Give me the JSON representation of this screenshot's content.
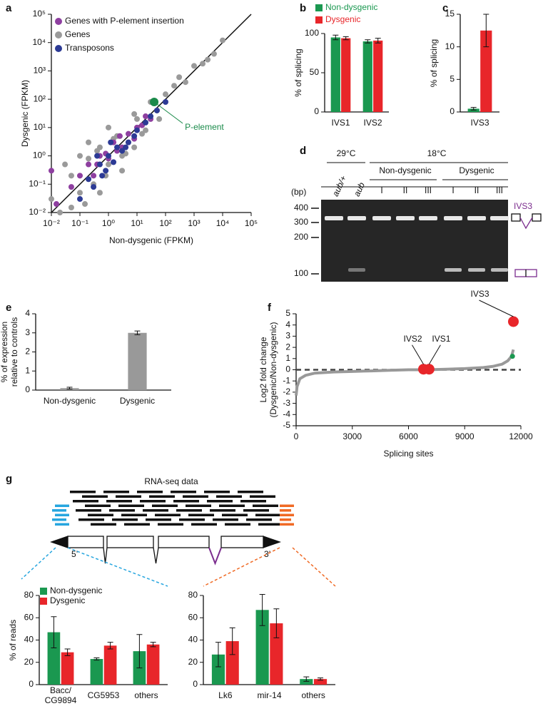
{
  "chart_data": [
    {
      "panel": "a",
      "type": "scatter",
      "log": true,
      "xlabel": "Non-dysgenic (FPKM)",
      "ylabel": "Dysgenic (FPKM)",
      "xlim": [
        0.01,
        100000
      ],
      "ylim": [
        0.01,
        100000
      ],
      "xticks": [
        {
          "value": 0.01,
          "label": "10⁻²"
        },
        {
          "value": 0.1,
          "label": "10⁻¹"
        },
        {
          "value": 1,
          "label": "10⁰"
        },
        {
          "value": 10,
          "label": "10¹"
        },
        {
          "value": 100,
          "label": "10²"
        },
        {
          "value": 1000,
          "label": "10³"
        },
        {
          "value": 10000,
          "label": "10⁴"
        },
        {
          "value": 100000,
          "label": "10⁵"
        }
      ],
      "yticks": [
        {
          "value": 0.01,
          "label": "10⁻²"
        },
        {
          "value": 0.1,
          "label": "10⁻¹"
        },
        {
          "value": 1,
          "label": "10⁰"
        },
        {
          "value": 10,
          "label": "10¹"
        },
        {
          "value": 100,
          "label": "10²"
        },
        {
          "value": 1000,
          "label": "10³"
        },
        {
          "value": 10000,
          "label": "10⁴"
        },
        {
          "value": 100000,
          "label": "10⁵"
        }
      ],
      "legend": "top-left",
      "diagonal": true,
      "series": [
        {
          "name": "Genes with P-element insertion",
          "color": "#8e3fa0",
          "x": [
            0.01,
            0.015,
            0.05,
            0.1,
            0.2,
            0.3,
            0.5,
            1,
            1.5,
            2,
            3,
            5,
            8,
            10,
            15,
            20,
            30,
            0.4,
            0.8,
            2.5
          ],
          "y": [
            0.3,
            0.02,
            0.08,
            0.2,
            0.5,
            0.2,
            1,
            0.8,
            3,
            1.5,
            2,
            6,
            4,
            10,
            12,
            25,
            20,
            0.5,
            1.2,
            5
          ]
        },
        {
          "name": "Genes",
          "color": "#9a9a9a",
          "x": [
            0.01,
            0.02,
            0.05,
            0.1,
            0.2,
            0.3,
            0.5,
            1,
            2,
            3,
            5,
            10,
            20,
            50,
            100,
            200,
            500,
            1000,
            2000,
            5000,
            10000,
            0.03,
            0.15,
            0.4,
            0.8,
            1.5,
            4,
            8,
            15,
            30,
            0.05,
            0.2,
            1,
            3,
            0.1,
            0.5,
            60,
            300,
            3000,
            8
          ],
          "y": [
            0.03,
            0.01,
            0.2,
            0.05,
            0.8,
            0.1,
            2,
            0.5,
            5,
            1,
            3,
            20,
            8,
            40,
            150,
            300,
            400,
            1500,
            1800,
            4000,
            12000,
            0.5,
            0.02,
            1.5,
            0.2,
            4,
            1.2,
            30,
            6,
            80,
            0.015,
            3,
            10,
            0.3,
            1,
            0.05,
            20,
            600,
            2500,
            2
          ]
        },
        {
          "name": "Transposons",
          "color": "#2c3a95",
          "x": [
            0.1,
            0.2,
            0.3,
            0.5,
            0.8,
            1,
            1.5,
            2,
            3,
            5,
            8,
            10,
            20,
            50,
            100,
            0.6,
            1.2,
            4,
            30,
            0.4
          ],
          "y": [
            0.03,
            0.15,
            0.08,
            0.5,
            0.3,
            1,
            0.6,
            2,
            1.5,
            3,
            5,
            8,
            15,
            40,
            80,
            0.2,
            3,
            2,
            25,
            1
          ]
        },
        {
          "label": "P-element",
          "color": "#1a8a4a",
          "x": [
            40
          ],
          "y": [
            80
          ]
        }
      ]
    },
    {
      "panel": "b",
      "type": "bar",
      "ylabel": "% of splicing",
      "categories": [
        "IVS1",
        "IVS2"
      ],
      "ylim": [
        0,
        100
      ],
      "yticks": [
        0,
        50,
        100
      ],
      "legend": "above",
      "series": [
        {
          "name": "Non-dysgenic",
          "color": "#1a9850",
          "values": [
            95,
            90
          ],
          "errors": [
            3,
            2
          ]
        },
        {
          "name": "Dysgenic",
          "color": "#e8262a",
          "values": [
            94,
            91
          ],
          "errors": [
            2,
            3
          ]
        }
      ]
    },
    {
      "panel": "c",
      "type": "bar",
      "ylabel": "% of splicing",
      "categories": [
        "IVS3"
      ],
      "ylim": [
        0,
        15
      ],
      "yticks": [
        0,
        5,
        10,
        15
      ],
      "series": [
        {
          "color": "#1a9850",
          "values": [
            0.5
          ],
          "errors": [
            0.2
          ]
        },
        {
          "color": "#e8262a",
          "values": [
            12.5
          ],
          "errors": [
            2.5
          ]
        }
      ]
    },
    {
      "panel": "e",
      "type": "bar",
      "ylabel": "% of expression\nrelative to controls",
      "categories": [
        "Non-dysgenic",
        "Dysgenic"
      ],
      "ylim": [
        0,
        4
      ],
      "yticks": [
        0,
        1,
        2,
        3,
        4
      ],
      "values": [
        0.1,
        3.0
      ],
      "errors": [
        0.05,
        0.1
      ],
      "color": "#999999"
    },
    {
      "panel": "f",
      "type": "line",
      "xlabel": "Splicing sites",
      "ylabel": "Log2 fold change\n(Dysgenic/Non-dysgenic)",
      "xlim": [
        0,
        12000
      ],
      "ylim": [
        -5,
        5
      ],
      "xticks": [
        0,
        3000,
        6000,
        9000,
        12000
      ],
      "yticks": [
        -5,
        -4,
        -3,
        -2,
        -1,
        0,
        1,
        2,
        3,
        4,
        5
      ],
      "series": [
        {
          "color": "#999999",
          "x": [
            0,
            50,
            200,
            500,
            1000,
            2000,
            3000,
            4000,
            5000,
            6000,
            7000,
            8000,
            9000,
            10000,
            10500,
            11000,
            11300,
            11500,
            11600
          ],
          "y": [
            -2.3,
            -1.5,
            -0.8,
            -0.5,
            -0.3,
            -0.2,
            -0.15,
            -0.1,
            -0.05,
            0,
            0,
            0.05,
            0.1,
            0.2,
            0.3,
            0.5,
            0.8,
            1.2,
            1.8
          ]
        },
        {
          "color": "#e8262a",
          "marker": "point",
          "x": [
            6800,
            7100,
            11600
          ],
          "y": [
            0.05,
            0.05,
            4.3
          ],
          "labels": [
            "IVS2",
            "IVS1",
            "IVS3"
          ]
        },
        {
          "color": "#1a9850",
          "marker": "point",
          "x": [
            11550
          ],
          "y": [
            1.2
          ]
        }
      ]
    },
    {
      "type": "bar",
      "ylabel": "% of reads",
      "categories": [
        "Bacc/\nCG9894",
        "CG5953",
        "others"
      ],
      "ylim": [
        0,
        80
      ],
      "yticks": [
        0,
        20,
        40,
        60,
        80
      ],
      "legend": "top-left",
      "series": [
        {
          "name": "Non-dysgenic",
          "color": "#1a9850",
          "values": [
            47,
            23,
            30
          ],
          "errors": [
            14,
            1,
            15
          ]
        },
        {
          "name": "Dysgenic",
          "color": "#e8262a",
          "values": [
            29,
            35,
            36
          ],
          "errors": [
            3,
            3,
            2
          ]
        }
      ]
    },
    {
      "type": "bar",
      "categories": [
        "Lk6",
        "mir-14",
        "others"
      ],
      "ylim": [
        0,
        80
      ],
      "yticks": [
        0,
        20,
        40,
        60,
        80
      ],
      "series": [
        {
          "color": "#1a9850",
          "values": [
            27,
            67,
            5
          ],
          "errors": [
            11,
            14,
            2
          ]
        },
        {
          "color": "#e8262a",
          "values": [
            39,
            55,
            5
          ],
          "errors": [
            12,
            13,
            1
          ]
        }
      ]
    }
  ],
  "gel": {
    "panel": "d",
    "temps": [
      "29°C",
      "18°C"
    ],
    "groups": [
      "Non-dysgenic",
      "Dysgenic"
    ],
    "lanes": [
      "aub/+",
      "aub",
      "I",
      "II",
      "III",
      "I",
      "II",
      "III"
    ],
    "unit": "(bp)",
    "markers": [
      400,
      300,
      200,
      100
    ],
    "label": "IVS3"
  },
  "diagram": {
    "panel": "g",
    "title": "RNA-seq data",
    "ends": [
      "5’",
      "3’"
    ]
  }
}
